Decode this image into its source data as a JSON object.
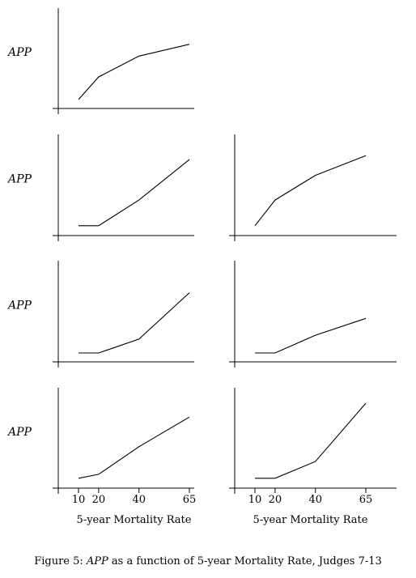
{
  "caption": {
    "prefix": "Figure 5: ",
    "emph": "APP",
    "suffix": " as a function of 5-year Mortality Rate, Judges 7-13"
  },
  "chart_data": {
    "type": "line",
    "ylabel": "APP",
    "xlabel": "5-year Mortality Rate",
    "x_ticks": [
      10,
      20,
      40,
      65
    ],
    "xlim": [
      0,
      68
    ],
    "ylim": [
      0,
      1
    ],
    "panels": [
      {
        "row": 0,
        "col": 0,
        "x": [
          10,
          20,
          40,
          65
        ],
        "y": [
          0.09,
          0.32,
          0.53,
          0.65
        ]
      },
      {
        "row": 1,
        "col": 0,
        "x": [
          10,
          20,
          40,
          65
        ],
        "y": [
          0.1,
          0.1,
          0.36,
          0.77
        ]
      },
      {
        "row": 1,
        "col": 1,
        "x": [
          10,
          20,
          40,
          65
        ],
        "y": [
          0.1,
          0.36,
          0.61,
          0.81
        ]
      },
      {
        "row": 2,
        "col": 0,
        "x": [
          10,
          20,
          40,
          65
        ],
        "y": [
          0.09,
          0.09,
          0.23,
          0.7
        ]
      },
      {
        "row": 2,
        "col": 1,
        "x": [
          10,
          20,
          40,
          65
        ],
        "y": [
          0.09,
          0.09,
          0.27,
          0.44
        ]
      },
      {
        "row": 3,
        "col": 0,
        "x": [
          10,
          20,
          40,
          65
        ],
        "y": [
          0.1,
          0.14,
          0.42,
          0.72
        ]
      },
      {
        "row": 3,
        "col": 1,
        "x": [
          10,
          20,
          40,
          65
        ],
        "y": [
          0.1,
          0.1,
          0.27,
          0.86
        ]
      }
    ]
  }
}
